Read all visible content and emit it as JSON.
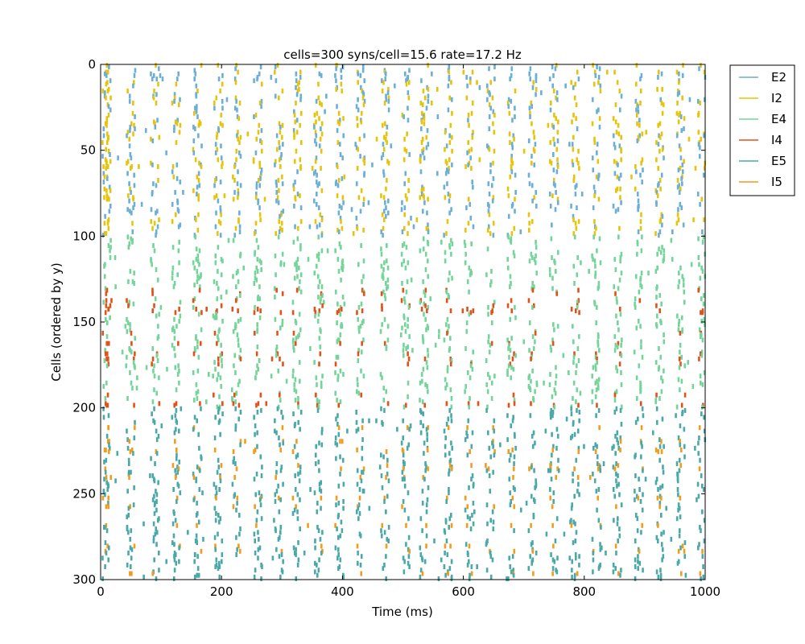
{
  "chart_data": {
    "type": "scatter",
    "title": "cells=300 syns/cell=15.6 rate=17.2 Hz",
    "xlabel": "Time (ms)",
    "ylabel": "Cells (ordered by y)",
    "xlim": [
      0,
      1000
    ],
    "ylim": [
      300,
      0
    ],
    "y_inverted": true,
    "x_ticks": [
      0,
      200,
      400,
      600,
      800,
      1000
    ],
    "y_ticks": [
      0,
      50,
      100,
      150,
      200,
      250,
      300
    ],
    "grid": false,
    "legend_position": "outside-top-right",
    "marker": "short vertical tick",
    "series": [
      {
        "name": "E2",
        "color": "#6baed6",
        "cell_range": [
          0,
          100
        ],
        "fraction": 0.62
      },
      {
        "name": "I2",
        "color": "#e6c40c",
        "cell_range": [
          0,
          100
        ],
        "fraction": 0.38
      },
      {
        "name": "E4",
        "color": "#74d49a",
        "cell_range": [
          100,
          200
        ],
        "fraction": 0.82
      },
      {
        "name": "I4",
        "color": "#e0521a",
        "cell_range": [
          100,
          200
        ],
        "fraction": 0.18
      },
      {
        "name": "E5",
        "color": "#4aa8a8",
        "cell_range": [
          200,
          300
        ],
        "fraction": 0.9
      },
      {
        "name": "I5",
        "color": "#f29c1c",
        "cell_range": [
          200,
          300
        ],
        "fraction": 0.1
      }
    ],
    "population_bursts_ms": [
      10,
      50,
      90,
      125,
      160,
      195,
      225,
      260,
      295,
      325,
      360,
      395,
      430,
      470,
      505,
      535,
      575,
      610,
      645,
      680,
      715,
      750,
      785,
      820,
      855,
      890,
      925,
      960,
      995
    ]
  }
}
